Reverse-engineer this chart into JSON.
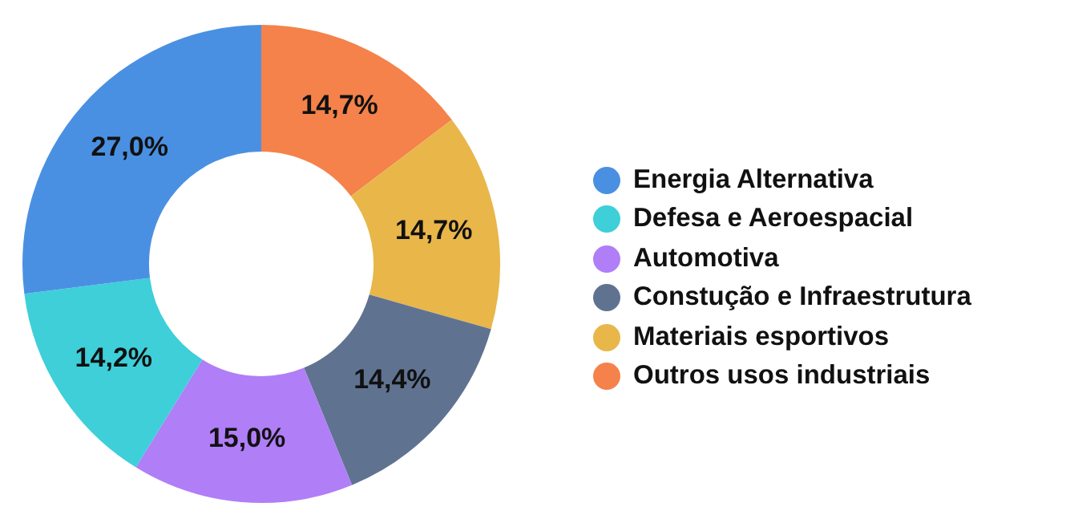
{
  "chart_data": {
    "type": "donut",
    "categories": [
      "Energia Alternativa",
      "Defesa e Aeroespacial",
      "Automotiva",
      "Constução e Infraestrutura",
      "Materiais esportivos",
      "Outros usos industriais"
    ],
    "values": [
      27.0,
      14.2,
      15.0,
      14.4,
      14.7,
      14.7
    ],
    "colors": [
      "#4a90e2",
      "#3ecfd9",
      "#b07ef7",
      "#5f7391",
      "#e9b64a",
      "#f4824a"
    ],
    "value_labels": [
      "27,0%",
      "14,2%",
      "15,0%",
      "14,4%",
      "14,7%",
      "14,7%"
    ],
    "legend": "right"
  }
}
